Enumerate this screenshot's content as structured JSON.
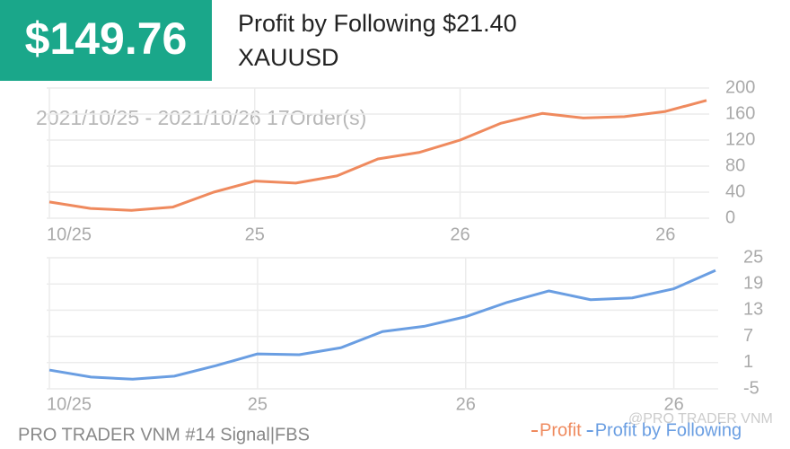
{
  "header": {
    "amount": "$149.76",
    "title": "Profit by Following $21.40",
    "symbol": "XAUUSD"
  },
  "chart_data": [
    {
      "type": "line",
      "subtitle": "2021/10/25 - 2021/10/26 17Order(s)",
      "categories": [
        "10/25",
        null,
        null,
        null,
        null,
        "25",
        null,
        null,
        null,
        null,
        "26",
        null,
        null,
        null,
        null,
        "26",
        null
      ],
      "series": [
        {
          "name": "Profit",
          "color": "#ef8a5e",
          "values": [
            25,
            15,
            12,
            17,
            40,
            57,
            54,
            65,
            91,
            101,
            120,
            146,
            161,
            154,
            156,
            164,
            181
          ]
        }
      ],
      "ylim": [
        0,
        200
      ],
      "yticks": [
        0,
        40,
        80,
        120,
        160,
        200
      ],
      "grid": true
    },
    {
      "type": "line",
      "categories": [
        "10/25",
        null,
        null,
        null,
        null,
        "25",
        null,
        null,
        null,
        null,
        "26",
        null,
        null,
        null,
        null,
        "26",
        null
      ],
      "series": [
        {
          "name": "Profit by Following",
          "color": "#6a9ee2",
          "values": [
            -0.7,
            -2.3,
            -2.8,
            -2.1,
            0.3,
            3,
            2.8,
            4.4,
            8.1,
            9.3,
            11.5,
            14.8,
            17.4,
            15.4,
            15.8,
            17.9,
            22.1
          ]
        }
      ],
      "ylim": [
        -5,
        25
      ],
      "yticks": [
        -5,
        1,
        7,
        13,
        19,
        25
      ],
      "grid": true
    }
  ],
  "footer": "PRO TRADER VNM #14 Signal|FBS",
  "watermark": "@PRO TRADER VNM"
}
